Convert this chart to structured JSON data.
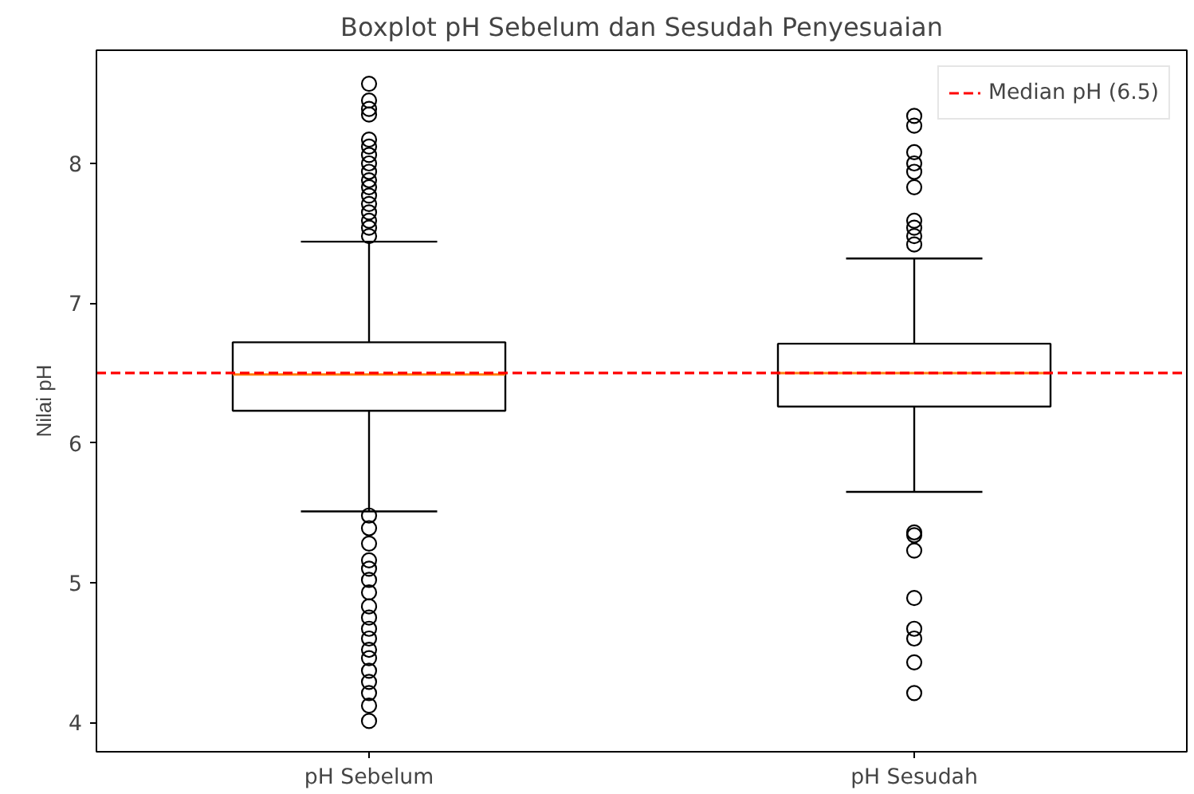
{
  "chart_data": {
    "type": "box",
    "title": "Boxplot pH Sebelum dan Sesudah Penyesuaian",
    "ylabel": "Nilai pH",
    "categories": [
      "pH Sebelum",
      "pH Sesudah"
    ],
    "boxes": [
      {
        "low": 5.51,
        "q1": 6.23,
        "median": 6.49,
        "q3": 6.72,
        "high": 7.44,
        "outliers": [
          8.57,
          8.45,
          8.39,
          8.35,
          8.17,
          8.12,
          8.06,
          8.0,
          7.94,
          7.88,
          7.83,
          7.77,
          7.71,
          7.65,
          7.59,
          7.54,
          7.48,
          5.48,
          5.39,
          5.28,
          5.16,
          5.1,
          5.02,
          4.93,
          4.83,
          4.75,
          4.67,
          4.6,
          4.52,
          4.46,
          4.37,
          4.29,
          4.21,
          4.12,
          4.01
        ]
      },
      {
        "low": 5.65,
        "q1": 6.26,
        "median": 6.5,
        "q3": 6.71,
        "high": 7.32,
        "outliers": [
          8.34,
          8.27,
          8.08,
          8.0,
          7.94,
          7.83,
          7.59,
          7.54,
          7.48,
          7.42,
          5.36,
          5.34,
          5.23,
          4.89,
          4.67,
          4.6,
          4.43,
          4.21
        ]
      }
    ],
    "ylim": [
      3.79,
      8.81
    ],
    "yticks": [
      4,
      5,
      6,
      7,
      8
    ],
    "ref_lines": [
      {
        "axis": "y",
        "value": 6.5,
        "label": "Median pH (6.5)",
        "color": "#ff0000",
        "line_style": "dashed"
      }
    ],
    "legend": "top right",
    "grid": false
  }
}
